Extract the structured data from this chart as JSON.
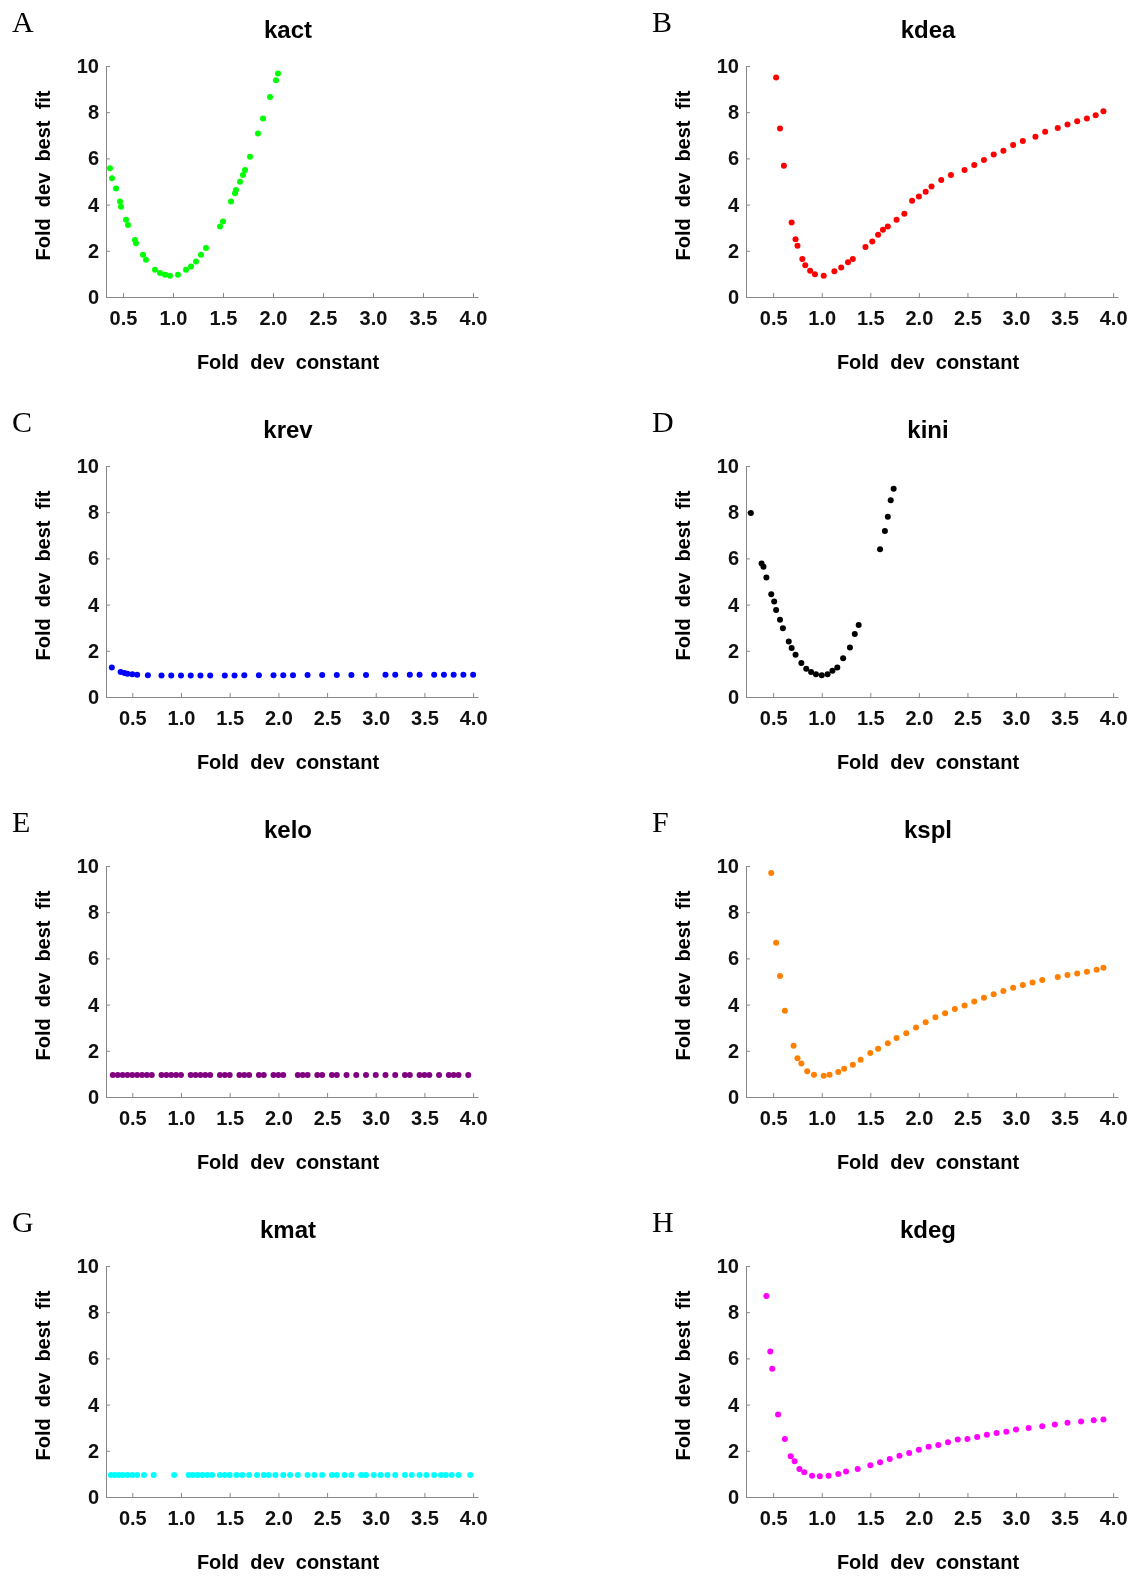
{
  "chart_data": [
    {
      "type": "scatter",
      "title": "kact",
      "xlabel": "Fold  dev  constant",
      "ylabel": "Fold  dev  best  fit",
      "annotations": [
        "A"
      ],
      "color": "#00ff00",
      "marker": "circle",
      "xlim": [
        0.33,
        4.05
      ],
      "ylim": [
        0,
        10
      ],
      "xticks": [
        0.5,
        {
          "value": 1,
          "label": "1.0"
        },
        1.5,
        {
          "value": 2,
          "label": "2.0"
        },
        2.5,
        {
          "value": 3,
          "label": "3.0"
        },
        3.5,
        {
          "value": 4,
          "label": "4.0"
        }
      ],
      "yticks": [
        0,
        2,
        4,
        6,
        8,
        10
      ],
      "x": [
        0.37,
        0.39,
        0.43,
        0.47,
        0.48,
        0.53,
        0.55,
        0.62,
        0.63,
        0.7,
        0.73,
        0.82,
        0.87,
        0.92,
        0.97,
        1.05,
        1.13,
        1.18,
        1.23,
        1.28,
        1.33,
        1.47,
        1.5,
        1.58,
        1.62,
        1.63,
        1.67,
        1.7,
        1.72,
        1.77,
        1.85,
        1.9,
        1.97,
        2.03,
        2.05
      ],
      "values": [
        5.57,
        5.14,
        4.7,
        4.13,
        3.91,
        3.34,
        3.12,
        2.47,
        2.33,
        1.83,
        1.61,
        1.18,
        1.04,
        0.96,
        0.92,
        0.96,
        1.18,
        1.32,
        1.54,
        1.83,
        2.12,
        3.05,
        3.27,
        4.13,
        4.49,
        4.63,
        4.99,
        5.28,
        5.5,
        6.07,
        7.08,
        7.73,
        8.66,
        9.38,
        9.67
      ]
    },
    {
      "type": "scatter",
      "title": "kdea",
      "xlabel": "Fold  dev  constant",
      "ylabel": "Fold  dev  best  fit",
      "annotations": [
        "B"
      ],
      "color": "#ff0000",
      "marker": "circle",
      "xlim": [
        0.22,
        4.05
      ],
      "ylim": [
        0,
        10
      ],
      "xticks": [
        0.5,
        {
          "value": 1,
          "label": "1.0"
        },
        1.5,
        {
          "value": 2,
          "label": "2.0"
        },
        2.5,
        {
          "value": 3,
          "label": "3.0"
        },
        3.5,
        {
          "value": 4,
          "label": "4.0"
        }
      ],
      "yticks": [
        0,
        2,
        4,
        6,
        8,
        10
      ],
      "x": [
        0.53,
        0.57,
        0.61,
        0.69,
        0.73,
        0.75,
        0.8,
        0.83,
        0.88,
        0.93,
        1.02,
        1.13,
        1.2,
        1.27,
        1.32,
        1.45,
        1.52,
        1.58,
        1.63,
        1.68,
        1.77,
        1.85,
        1.93,
        2.0,
        2.07,
        2.13,
        2.23,
        2.33,
        2.47,
        2.57,
        2.67,
        2.77,
        2.87,
        2.97,
        3.07,
        3.2,
        3.3,
        3.43,
        3.53,
        3.63,
        3.73,
        3.82,
        3.9
      ],
      "values": [
        9.5,
        7.29,
        5.68,
        3.22,
        2.5,
        2.22,
        1.64,
        1.37,
        1.14,
        0.99,
        0.92,
        1.11,
        1.28,
        1.5,
        1.64,
        2.16,
        2.4,
        2.69,
        2.91,
        3.05,
        3.34,
        3.6,
        4.17,
        4.35,
        4.56,
        4.78,
        5.06,
        5.28,
        5.5,
        5.71,
        5.93,
        6.17,
        6.33,
        6.58,
        6.75,
        6.94,
        7.15,
        7.32,
        7.47,
        7.61,
        7.73,
        7.87,
        8.04
      ]
    },
    {
      "type": "scatter",
      "title": "krev",
      "xlabel": "Fold  dev  constant",
      "ylabel": "Fold  dev  best  fit",
      "annotations": [
        "C"
      ],
      "color": "#0000ff",
      "marker": "circle",
      "xlim": [
        0.23,
        4.05
      ],
      "ylim": [
        0,
        10
      ],
      "xticks": [
        0.5,
        {
          "value": 1,
          "label": "1.0"
        },
        1.5,
        {
          "value": 2,
          "label": "2.0"
        },
        2.5,
        {
          "value": 3,
          "label": "3.0"
        },
        3.5,
        {
          "value": 4,
          "label": "4.0"
        }
      ],
      "yticks": [
        0,
        2,
        4,
        6,
        8,
        10
      ],
      "x": [
        0.29,
        0.38,
        0.42,
        0.45,
        0.5,
        0.55,
        0.66,
        0.8,
        0.9,
        1.0,
        1.1,
        1.2,
        1.3,
        1.45,
        1.55,
        1.65,
        1.8,
        1.95,
        2.05,
        2.15,
        2.3,
        2.45,
        2.6,
        2.75,
        2.9,
        3.1,
        3.2,
        3.35,
        3.45,
        3.6,
        3.7,
        3.8,
        3.9,
        4.0
      ],
      "values": [
        1.28,
        1.08,
        1.04,
        1.01,
        0.99,
        0.96,
        0.94,
        0.93,
        0.93,
        0.93,
        0.93,
        0.93,
        0.93,
        0.93,
        0.93,
        0.94,
        0.94,
        0.94,
        0.94,
        0.94,
        0.95,
        0.95,
        0.95,
        0.95,
        0.95,
        0.96,
        0.96,
        0.96,
        0.96,
        0.96,
        0.96,
        0.96,
        0.96,
        0.96
      ]
    },
    {
      "type": "scatter",
      "title": "kini",
      "xlabel": "Fold  dev  constant",
      "ylabel": "Fold  dev  best  fit",
      "annotations": [
        "D"
      ],
      "color": "#000000",
      "marker": "circle",
      "xlim": [
        0.22,
        4.05
      ],
      "ylim": [
        0,
        10
      ],
      "xticks": [
        0.5,
        {
          "value": 1,
          "label": "1.0"
        },
        1.5,
        {
          "value": 2,
          "label": "2.0"
        },
        2.5,
        {
          "value": 3,
          "label": "3.0"
        },
        3.5,
        {
          "value": 4,
          "label": "4.0"
        }
      ],
      "yticks": [
        0,
        2,
        4,
        6,
        8,
        10
      ],
      "x": [
        0.27,
        0.38,
        0.4,
        0.43,
        0.48,
        0.51,
        0.53,
        0.57,
        0.6,
        0.66,
        0.69,
        0.73,
        0.79,
        0.84,
        0.89,
        0.94,
        1.0,
        1.06,
        1.11,
        1.16,
        1.22,
        1.29,
        1.34,
        1.38,
        1.6,
        1.65,
        1.68,
        1.71,
        1.74
      ],
      "values": [
        7.97,
        5.78,
        5.64,
        5.17,
        4.45,
        4.13,
        3.77,
        3.34,
        2.98,
        2.4,
        2.12,
        1.83,
        1.47,
        1.22,
        1.08,
        0.99,
        0.94,
        0.99,
        1.14,
        1.28,
        1.68,
        2.14,
        2.73,
        3.12,
        6.4,
        7.19,
        7.8,
        8.52,
        9.02
      ]
    },
    {
      "type": "scatter",
      "title": "kelo",
      "xlabel": "Fold  dev  constant",
      "ylabel": "Fold  dev  best  fit",
      "annotations": [
        "E"
      ],
      "color": "#800080",
      "marker": "circle",
      "xlim": [
        0.23,
        4.05
      ],
      "ylim": [
        0,
        10
      ],
      "xticks": [
        0.5,
        {
          "value": 1,
          "label": "1.0"
        },
        1.5,
        {
          "value": 2,
          "label": "2.0"
        },
        2.5,
        {
          "value": 3,
          "label": "3.0"
        },
        3.5,
        {
          "value": 4,
          "label": "4.0"
        }
      ],
      "yticks": [
        0,
        2,
        4,
        6,
        8,
        10
      ],
      "x": [
        0.3,
        0.35,
        0.4,
        0.45,
        0.5,
        0.55,
        0.6,
        0.65,
        0.7,
        0.8,
        0.85,
        0.9,
        0.95,
        1.0,
        1.1,
        1.15,
        1.2,
        1.25,
        1.3,
        1.4,
        1.45,
        1.5,
        1.6,
        1.65,
        1.7,
        1.8,
        1.85,
        1.95,
        2.0,
        2.05,
        2.2,
        2.25,
        2.3,
        2.4,
        2.45,
        2.55,
        2.6,
        2.7,
        2.8,
        2.9,
        3.0,
        3.1,
        3.2,
        3.3,
        3.35,
        3.45,
        3.5,
        3.55,
        3.65,
        3.75,
        3.8,
        3.85,
        3.95
      ],
      "values": [
        0.95,
        0.95,
        0.95,
        0.95,
        0.95,
        0.95,
        0.95,
        0.95,
        0.95,
        0.95,
        0.95,
        0.95,
        0.95,
        0.95,
        0.95,
        0.95,
        0.95,
        0.95,
        0.95,
        0.95,
        0.95,
        0.95,
        0.95,
        0.95,
        0.95,
        0.95,
        0.95,
        0.95,
        0.95,
        0.95,
        0.95,
        0.95,
        0.95,
        0.95,
        0.95,
        0.95,
        0.95,
        0.95,
        0.95,
        0.95,
        0.95,
        0.95,
        0.95,
        0.95,
        0.95,
        0.95,
        0.95,
        0.95,
        0.95,
        0.95,
        0.95,
        0.95,
        0.95
      ]
    },
    {
      "type": "scatter",
      "title": "kspl",
      "xlabel": "Fold  dev  constant",
      "ylabel": "Fold  dev  best  fit",
      "annotations": [
        "F"
      ],
      "color": "#ff8000",
      "marker": "circle",
      "xlim": [
        0.22,
        4.05
      ],
      "ylim": [
        0,
        10
      ],
      "xticks": [
        0.5,
        {
          "value": 1,
          "label": "1.0"
        },
        1.5,
        {
          "value": 2,
          "label": "2.0"
        },
        2.5,
        {
          "value": 3,
          "label": "3.0"
        },
        3.5,
        {
          "value": 4,
          "label": "4.0"
        }
      ],
      "yticks": [
        0,
        2,
        4,
        6,
        8,
        10
      ],
      "x": [
        0.48,
        0.53,
        0.57,
        0.62,
        0.71,
        0.75,
        0.79,
        0.85,
        0.92,
        1.02,
        1.08,
        1.17,
        1.23,
        1.32,
        1.4,
        1.5,
        1.58,
        1.68,
        1.77,
        1.87,
        1.97,
        2.07,
        2.17,
        2.27,
        2.37,
        2.47,
        2.57,
        2.67,
        2.77,
        2.87,
        2.97,
        3.07,
        3.17,
        3.27,
        3.43,
        3.53,
        3.63,
        3.73,
        3.83,
        3.9
      ],
      "values": [
        9.7,
        6.68,
        5.24,
        3.73,
        2.22,
        1.68,
        1.45,
        1.11,
        0.96,
        0.92,
        0.96,
        1.08,
        1.22,
        1.4,
        1.61,
        1.9,
        2.09,
        2.33,
        2.55,
        2.76,
        3.01,
        3.24,
        3.45,
        3.63,
        3.81,
        3.96,
        4.13,
        4.3,
        4.45,
        4.59,
        4.73,
        4.85,
        4.96,
        5.06,
        5.19,
        5.28,
        5.35,
        5.42,
        5.51,
        5.6
      ]
    },
    {
      "type": "scatter",
      "title": "kmat",
      "xlabel": "Fold  dev  constant",
      "ylabel": "Fold  dev  best  fit",
      "annotations": [
        "G"
      ],
      "color": "#00ffff",
      "marker": "circle",
      "xlim": [
        0.23,
        4.05
      ],
      "ylim": [
        0,
        10
      ],
      "xticks": [
        0.5,
        {
          "value": 1,
          "label": "1.0"
        },
        1.5,
        {
          "value": 2,
          "label": "2.0"
        },
        2.5,
        {
          "value": 3,
          "label": "3.0"
        },
        3.5,
        {
          "value": 4,
          "label": "4.0"
        }
      ],
      "yticks": [
        0,
        2,
        4,
        6,
        8,
        10
      ],
      "x": [
        0.28,
        0.32,
        0.36,
        0.4,
        0.45,
        0.5,
        0.55,
        0.62,
        0.72,
        0.93,
        1.08,
        1.12,
        1.17,
        1.22,
        1.27,
        1.32,
        1.4,
        1.45,
        1.5,
        1.57,
        1.63,
        1.7,
        1.78,
        1.85,
        1.9,
        1.97,
        2.05,
        2.12,
        2.2,
        2.3,
        2.37,
        2.45,
        2.55,
        2.6,
        2.68,
        2.75,
        2.85,
        2.9,
        2.98,
        3.05,
        3.12,
        3.2,
        3.3,
        3.37,
        3.45,
        3.52,
        3.6,
        3.67,
        3.72,
        3.78,
        3.85,
        3.97
      ],
      "values": [
        0.95,
        0.95,
        0.95,
        0.95,
        0.95,
        0.95,
        0.95,
        0.95,
        0.95,
        0.95,
        0.95,
        0.95,
        0.95,
        0.95,
        0.95,
        0.95,
        0.95,
        0.95,
        0.95,
        0.95,
        0.95,
        0.95,
        0.95,
        0.95,
        0.95,
        0.95,
        0.95,
        0.95,
        0.95,
        0.95,
        0.95,
        0.95,
        0.95,
        0.95,
        0.95,
        0.95,
        0.95,
        0.95,
        0.95,
        0.95,
        0.95,
        0.95,
        0.95,
        0.95,
        0.95,
        0.95,
        0.95,
        0.95,
        0.95,
        0.95,
        0.95,
        0.95
      ]
    },
    {
      "type": "scatter",
      "title": "kdeg",
      "xlabel": "Fold  dev  constant",
      "ylabel": "Fold  dev  best  fit",
      "annotations": [
        "H"
      ],
      "color": "#ff00ff",
      "marker": "circle",
      "xlim": [
        0.22,
        4.05
      ],
      "ylim": [
        0,
        10
      ],
      "xticks": [
        0.5,
        {
          "value": 1,
          "label": "1.0"
        },
        1.5,
        {
          "value": 2,
          "label": "2.0"
        },
        2.5,
        {
          "value": 3,
          "label": "3.0"
        },
        3.5,
        {
          "value": 4,
          "label": "4.0"
        }
      ],
      "yticks": [
        0,
        2,
        4,
        6,
        8,
        10
      ],
      "x": [
        0.43,
        0.47,
        0.49,
        0.55,
        0.62,
        0.68,
        0.72,
        0.77,
        0.82,
        0.9,
        0.98,
        1.07,
        1.17,
        1.25,
        1.37,
        1.5,
        1.6,
        1.7,
        1.8,
        1.9,
        2.0,
        2.1,
        2.2,
        2.3,
        2.4,
        2.5,
        2.6,
        2.7,
        2.8,
        2.9,
        3.0,
        3.13,
        3.27,
        3.4,
        3.53,
        3.67,
        3.8,
        3.9
      ],
      "values": [
        8.7,
        6.3,
        5.55,
        3.57,
        2.51,
        1.76,
        1.55,
        1.21,
        1.07,
        0.92,
        0.9,
        0.92,
        1.0,
        1.1,
        1.21,
        1.37,
        1.5,
        1.65,
        1.79,
        1.91,
        2.05,
        2.17,
        2.25,
        2.37,
        2.49,
        2.51,
        2.6,
        2.69,
        2.77,
        2.83,
        2.92,
        2.99,
        3.06,
        3.14,
        3.21,
        3.27,
        3.32,
        3.35
      ]
    }
  ]
}
